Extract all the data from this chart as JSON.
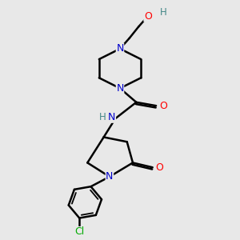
{
  "bg_color": "#e8e8e8",
  "atom_colors": {
    "N": "#0000cc",
    "O": "#ff0000",
    "Cl": "#00aa00",
    "H": "#448888"
  },
  "bond_color": "#000000",
  "bond_width": 1.8,
  "figsize": [
    3.0,
    3.0
  ],
  "dpi": 100,
  "xlim": [
    0,
    10
  ],
  "ylim": [
    0,
    10
  ]
}
